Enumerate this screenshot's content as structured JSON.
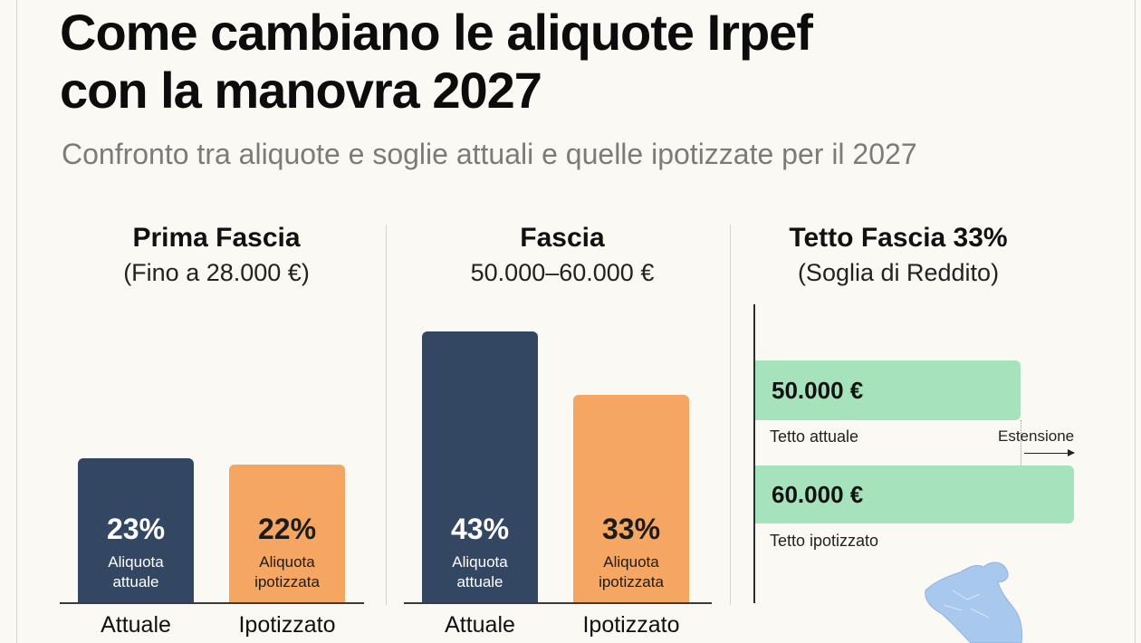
{
  "header": {
    "title_line1": "Come cambiano le aliquote Irpef",
    "title_line2": "con la manovra 2027",
    "subtitle": "Confronto tra aliquote e soglie attuali e quelle ipotizzate per il 2027"
  },
  "colors": {
    "attuale": "#334762",
    "ipotizzato": "#f4a662",
    "soglia": "#a6e3bd"
  },
  "chart_data": [
    {
      "type": "bar",
      "title": "Prima Fascia",
      "subtitle": "(Fino a 28.000 €)",
      "categories": [
        "Attuale",
        "Ipotizzato"
      ],
      "values": [
        23,
        22
      ],
      "value_labels": [
        "23%",
        "22%"
      ],
      "bar_labels": [
        [
          "Aliquota",
          "attuale"
        ],
        [
          "Aliquota",
          "ipotizzata"
        ]
      ],
      "unit": "%"
    },
    {
      "type": "bar",
      "title": "Fascia",
      "subtitle": "50.000–60.000 €",
      "categories": [
        "Attuale",
        "Ipotizzato"
      ],
      "values": [
        43,
        33
      ],
      "value_labels": [
        "43%",
        "33%"
      ],
      "bar_labels": [
        [
          "Aliquota",
          "attuale"
        ],
        [
          "Aliquota",
          "ipotizzata"
        ]
      ],
      "unit": "%"
    },
    {
      "type": "bar",
      "orientation": "horizontal",
      "title": "Tetto Fascia 33%",
      "subtitle": "(Soglia di Reddito)",
      "categories": [
        "Tetto attuale",
        "Tetto ipotizzato"
      ],
      "values": [
        50000,
        60000
      ],
      "value_labels": [
        "50.000 €",
        "60.000 €"
      ],
      "annotation": "Estensione",
      "unit": "€"
    }
  ],
  "map_icon": "italy-map-icon"
}
